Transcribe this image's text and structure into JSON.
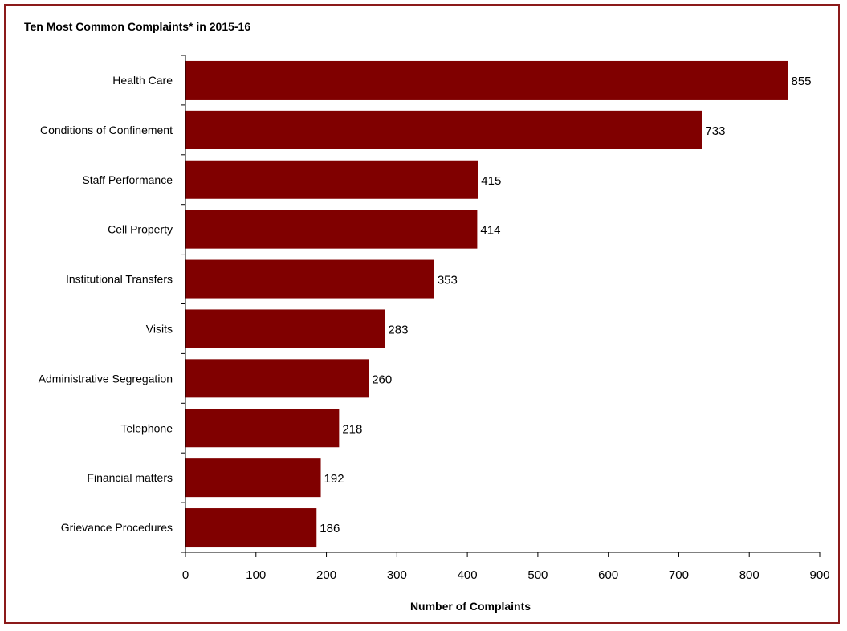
{
  "chart_data": {
    "type": "bar",
    "orientation": "horizontal",
    "title": "Ten Most Common Complaints* in 2015-16",
    "xlabel": "Number of Complaints",
    "ylabel": "",
    "categories": [
      "Health Care",
      "Conditions of Confinement",
      "Staff Performance",
      "Cell Property",
      "Institutional Transfers",
      "Visits",
      "Administrative Segregation",
      "Telephone",
      "Financial matters",
      "Grievance Procedures"
    ],
    "values": [
      855,
      733,
      415,
      414,
      353,
      283,
      260,
      218,
      192,
      186
    ],
    "xlim": [
      0,
      900
    ],
    "xticks": [
      0,
      100,
      200,
      300,
      400,
      500,
      600,
      700,
      800,
      900
    ],
    "grid": false,
    "legend": "none",
    "bar_color": "#800000",
    "frame_color": "#8b1a1a"
  }
}
